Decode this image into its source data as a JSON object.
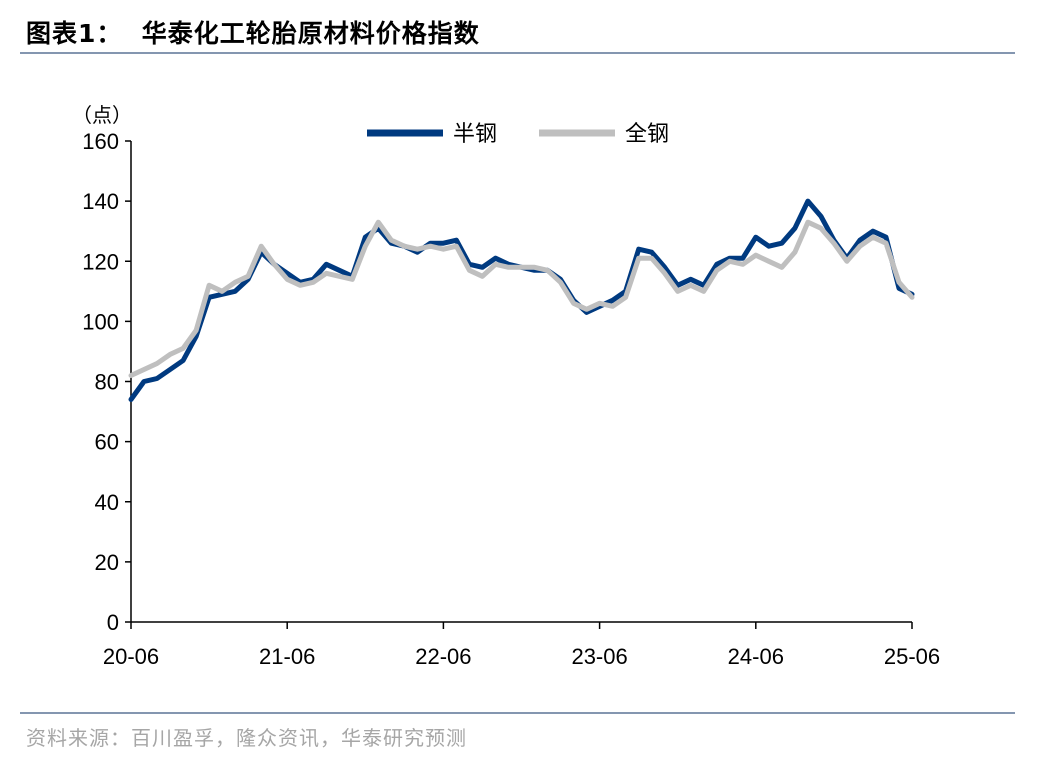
{
  "figure": {
    "title": "图表1：  华泰化工轮胎原材料价格指数",
    "source": "资料来源：百川盈孚，隆众资讯，华泰研究预测"
  },
  "chart_data": {
    "type": "line",
    "title": "",
    "ylabel": "（点）",
    "xlabel": "",
    "ylim": [
      0,
      160
    ],
    "yticks": [
      "0",
      "20",
      "40",
      "60",
      "80",
      "100",
      "120",
      "140",
      "160"
    ],
    "xticks": [
      "20-06",
      "21-06",
      "22-06",
      "23-06",
      "24-06",
      "25-06"
    ],
    "xlim": [
      "2020-06",
      "2025-06"
    ],
    "grid": false,
    "legend": "top-center",
    "series": [
      {
        "name": "半钢",
        "color": "#003a80",
        "points": [
          [
            "2020-06",
            74
          ],
          [
            "2020-07",
            80
          ],
          [
            "2020-08",
            81
          ],
          [
            "2020-09",
            84
          ],
          [
            "2020-10",
            87
          ],
          [
            "2020-11",
            95
          ],
          [
            "2020-12",
            108
          ],
          [
            "2021-01",
            109
          ],
          [
            "2021-02",
            110
          ],
          [
            "2021-03",
            114
          ],
          [
            "2021-04",
            123
          ],
          [
            "2021-05",
            119
          ],
          [
            "2021-06",
            116
          ],
          [
            "2021-07",
            113
          ],
          [
            "2021-08",
            114
          ],
          [
            "2021-09",
            119
          ],
          [
            "2021-10",
            117
          ],
          [
            "2021-11",
            115
          ],
          [
            "2021-12",
            128
          ],
          [
            "2022-01",
            131
          ],
          [
            "2022-02",
            126
          ],
          [
            "2022-03",
            125
          ],
          [
            "2022-04",
            123
          ],
          [
            "2022-05",
            126
          ],
          [
            "2022-06",
            126
          ],
          [
            "2022-07",
            127
          ],
          [
            "2022-08",
            119
          ],
          [
            "2022-09",
            118
          ],
          [
            "2022-10",
            121
          ],
          [
            "2022-11",
            119
          ],
          [
            "2022-12",
            118
          ],
          [
            "2023-01",
            117
          ],
          [
            "2023-02",
            117
          ],
          [
            "2023-03",
            114
          ],
          [
            "2023-04",
            107
          ],
          [
            "2023-05",
            103
          ],
          [
            "2023-06",
            105
          ],
          [
            "2023-07",
            107
          ],
          [
            "2023-08",
            110
          ],
          [
            "2023-09",
            124
          ],
          [
            "2023-10",
            123
          ],
          [
            "2023-11",
            118
          ],
          [
            "2023-12",
            112
          ],
          [
            "2024-01",
            114
          ],
          [
            "2024-02",
            112
          ],
          [
            "2024-03",
            119
          ],
          [
            "2024-04",
            121
          ],
          [
            "2024-05",
            121
          ],
          [
            "2024-06",
            128
          ],
          [
            "2024-07",
            125
          ],
          [
            "2024-08",
            126
          ],
          [
            "2024-09",
            131
          ],
          [
            "2024-10",
            140
          ],
          [
            "2024-11",
            135
          ],
          [
            "2024-12",
            127
          ],
          [
            "2025-01",
            121
          ],
          [
            "2025-02",
            127
          ],
          [
            "2025-03",
            130
          ],
          [
            "2025-04",
            128
          ],
          [
            "2025-05",
            111
          ],
          [
            "2025-06",
            109
          ]
        ]
      },
      {
        "name": "全钢",
        "color": "#bfbfbf",
        "points": [
          [
            "2020-06",
            82
          ],
          [
            "2020-07",
            84
          ],
          [
            "2020-08",
            86
          ],
          [
            "2020-09",
            89
          ],
          [
            "2020-10",
            91
          ],
          [
            "2020-11",
            97
          ],
          [
            "2020-12",
            112
          ],
          [
            "2021-01",
            110
          ],
          [
            "2021-02",
            113
          ],
          [
            "2021-03",
            115
          ],
          [
            "2021-04",
            125
          ],
          [
            "2021-05",
            119
          ],
          [
            "2021-06",
            114
          ],
          [
            "2021-07",
            112
          ],
          [
            "2021-08",
            113
          ],
          [
            "2021-09",
            116
          ],
          [
            "2021-10",
            115
          ],
          [
            "2021-11",
            114
          ],
          [
            "2021-12",
            125
          ],
          [
            "2022-01",
            133
          ],
          [
            "2022-02",
            127
          ],
          [
            "2022-03",
            125
          ],
          [
            "2022-04",
            124
          ],
          [
            "2022-05",
            125
          ],
          [
            "2022-06",
            124
          ],
          [
            "2022-07",
            125
          ],
          [
            "2022-08",
            117
          ],
          [
            "2022-09",
            115
          ],
          [
            "2022-10",
            119
          ],
          [
            "2022-11",
            118
          ],
          [
            "2022-12",
            118
          ],
          [
            "2023-01",
            118
          ],
          [
            "2023-02",
            117
          ],
          [
            "2023-03",
            113
          ],
          [
            "2023-04",
            106
          ],
          [
            "2023-05",
            104
          ],
          [
            "2023-06",
            106
          ],
          [
            "2023-07",
            105
          ],
          [
            "2023-08",
            108
          ],
          [
            "2023-09",
            121
          ],
          [
            "2023-10",
            121
          ],
          [
            "2023-11",
            116
          ],
          [
            "2023-12",
            110
          ],
          [
            "2024-01",
            112
          ],
          [
            "2024-02",
            110
          ],
          [
            "2024-03",
            117
          ],
          [
            "2024-04",
            120
          ],
          [
            "2024-05",
            119
          ],
          [
            "2024-06",
            122
          ],
          [
            "2024-07",
            120
          ],
          [
            "2024-08",
            118
          ],
          [
            "2024-09",
            123
          ],
          [
            "2024-10",
            133
          ],
          [
            "2024-11",
            131
          ],
          [
            "2024-12",
            126
          ],
          [
            "2025-01",
            120
          ],
          [
            "2025-02",
            125
          ],
          [
            "2025-03",
            128
          ],
          [
            "2025-04",
            126
          ],
          [
            "2025-05",
            113
          ],
          [
            "2025-06",
            108
          ]
        ]
      }
    ]
  }
}
